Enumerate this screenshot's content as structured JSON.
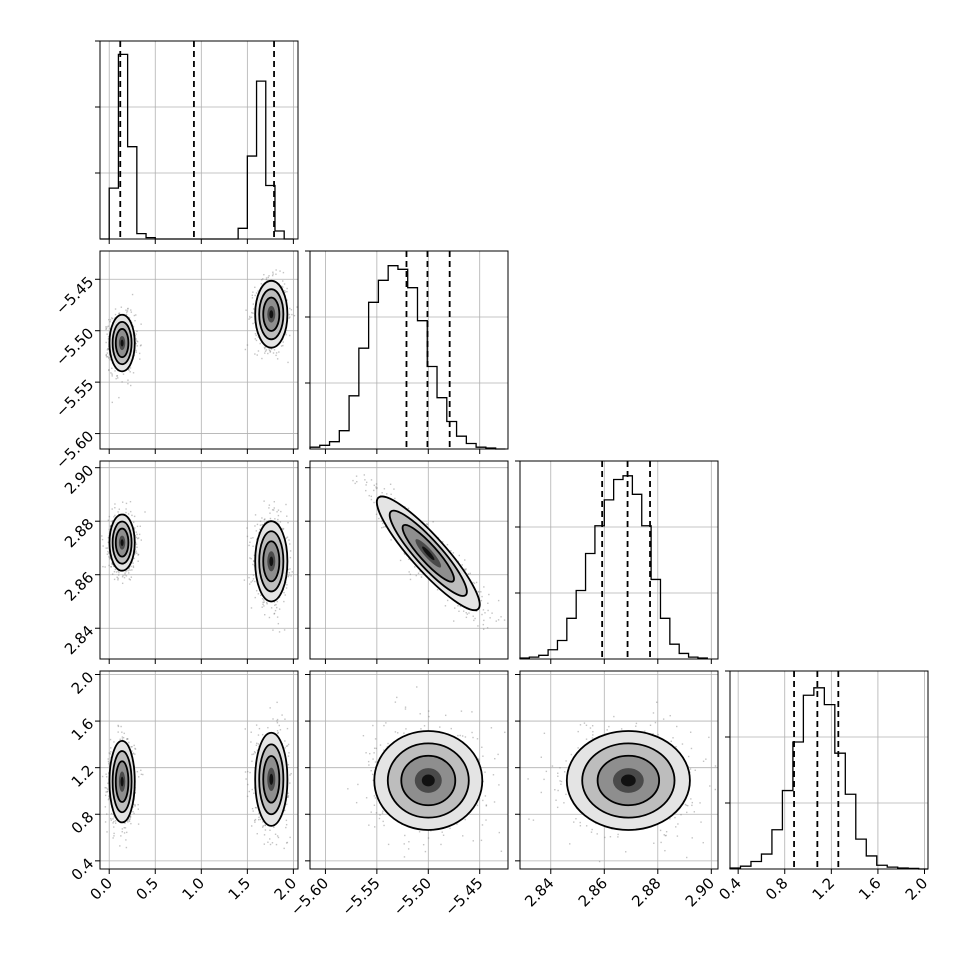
{
  "chart_data": {
    "type": "corner",
    "parameters": [
      {
        "range": [
          -0.1,
          2.05
        ],
        "ticks": [
          0.0,
          0.5,
          1.0,
          1.5,
          2.0
        ],
        "tick_labels": [
          "0.0",
          "0.5",
          "1.0",
          "1.5",
          "2.0"
        ]
      },
      {
        "range": [
          -5.615,
          -5.4225
        ],
        "ticks": [
          -5.6,
          -5.55,
          -5.5,
          -5.45
        ],
        "tick_labels": [
          "−5.60",
          "−5.55",
          "−5.50",
          "−5.45"
        ]
      },
      {
        "range": [
          2.8285,
          2.9025
        ],
        "ticks": [
          2.84,
          2.86,
          2.88,
          2.9
        ],
        "tick_labels": [
          "2.84",
          "2.86",
          "2.88",
          "2.90"
        ]
      },
      {
        "range": [
          0.33,
          2.03
        ],
        "ticks": [
          0.4,
          0.8,
          1.2,
          1.6,
          2.0
        ],
        "tick_labels": [
          "0.4",
          "0.8",
          "1.2",
          "1.6",
          "2.0"
        ]
      }
    ],
    "marginals": [
      {
        "parameter": 0,
        "quantiles": [
          0.12,
          0.92,
          1.79
        ],
        "bin_edges": [
          -0.1,
          0.0,
          0.1,
          0.2,
          0.3,
          0.4,
          0.5,
          1.4,
          1.5,
          1.6,
          1.7,
          1.8,
          1.9,
          2.0
        ],
        "heights": [
          0.0,
          0.38,
          1.38,
          0.69,
          0.04,
          0.01,
          0.0,
          0.08,
          0.62,
          1.18,
          0.4,
          0.06,
          0.0
        ],
        "ymax": 1.48
      },
      {
        "parameter": 1,
        "quantiles": [
          -5.5212,
          -5.5008,
          -5.4792
        ],
        "bin_edges": [
          -5.615,
          -5.6055,
          -5.596,
          -5.5865,
          -5.577,
          -5.5675,
          -5.558,
          -5.5485,
          -5.539,
          -5.5295,
          -5.52,
          -5.5105,
          -5.501,
          -5.4915,
          -5.482,
          -5.4725,
          -5.463,
          -5.4535,
          -5.444,
          -5.4345,
          -5.425
        ],
        "heights": [
          0.01,
          0.02,
          0.04,
          0.1,
          0.29,
          0.55,
          0.8,
          0.92,
          1.0,
          0.98,
          0.88,
          0.7,
          0.45,
          0.28,
          0.15,
          0.07,
          0.03,
          0.01,
          0.005,
          0.0
        ],
        "ymax": 1.08
      },
      {
        "parameter": 2,
        "quantiles": [
          2.8592,
          2.8687,
          2.8771
        ],
        "bin_edges": [
          2.8285,
          2.832,
          2.8355,
          2.839,
          2.8425,
          2.846,
          2.8495,
          2.853,
          2.8565,
          2.86,
          2.8635,
          2.867,
          2.8705,
          2.874,
          2.8775,
          2.881,
          2.8845,
          2.888,
          2.8915,
          2.895,
          2.8985
        ],
        "heights": [
          0.005,
          0.01,
          0.02,
          0.05,
          0.1,
          0.22,
          0.37,
          0.57,
          0.72,
          0.86,
          0.97,
          0.99,
          0.89,
          0.72,
          0.43,
          0.22,
          0.08,
          0.03,
          0.01,
          0.005
        ],
        "ymax": 1.07
      },
      {
        "parameter": 3,
        "quantiles": [
          0.88,
          1.08,
          1.26
        ],
        "bin_edges": [
          0.33,
          0.42,
          0.51,
          0.6,
          0.69,
          0.78,
          0.87,
          0.96,
          1.05,
          1.14,
          1.23,
          1.32,
          1.41,
          1.5,
          1.59,
          1.68,
          1.77,
          1.86,
          1.95,
          2.03
        ],
        "heights": [
          0.005,
          0.015,
          0.04,
          0.08,
          0.21,
          0.42,
          0.68,
          0.93,
          0.97,
          0.88,
          0.62,
          0.4,
          0.16,
          0.07,
          0.02,
          0.01,
          0.005,
          0.003,
          0.0
        ],
        "ymax": 1.06
      }
    ],
    "joints": [
      {
        "x": 0,
        "y": 1,
        "modes": [
          {
            "cx": 0.14,
            "cy": -5.512,
            "sx": 0.055,
            "sy": 0.011,
            "rho": 0.0,
            "weight": 1.0
          },
          {
            "cx": 1.76,
            "cy": -5.484,
            "sx": 0.07,
            "sy": 0.013,
            "rho": 0.0,
            "weight": 0.85
          }
        ]
      },
      {
        "x": 0,
        "y": 2,
        "modes": [
          {
            "cx": 0.14,
            "cy": 2.872,
            "sx": 0.055,
            "sy": 0.0042,
            "rho": 0.0,
            "weight": 1.0
          },
          {
            "cx": 1.76,
            "cy": 2.865,
            "sx": 0.07,
            "sy": 0.006,
            "rho": 0.0,
            "weight": 0.85
          }
        ]
      },
      {
        "x": 0,
        "y": 3,
        "modes": [
          {
            "cx": 0.14,
            "cy": 1.08,
            "sx": 0.055,
            "sy": 0.14,
            "rho": 0.0,
            "weight": 1.0
          },
          {
            "cx": 1.76,
            "cy": 1.1,
            "sx": 0.07,
            "sy": 0.16,
            "rho": 0.0,
            "weight": 0.85
          }
        ]
      },
      {
        "x": 1,
        "y": 2,
        "modes": [
          {
            "cx": -5.5,
            "cy": 2.868,
            "sx": 0.02,
            "sy": 0.0085,
            "rho": -0.9,
            "weight": 1.0
          }
        ]
      },
      {
        "x": 1,
        "y": 3,
        "modes": [
          {
            "cx": -5.5,
            "cy": 1.09,
            "sx": 0.021,
            "sy": 0.17,
            "rho": 0.0,
            "weight": 1.0
          }
        ]
      },
      {
        "x": 2,
        "y": 3,
        "modes": [
          {
            "cx": 2.869,
            "cy": 1.09,
            "sx": 0.0092,
            "sy": 0.17,
            "rho": 0.0,
            "weight": 1.0
          }
        ]
      }
    ],
    "contour_levels_sigma": [
      0.5,
      1.0,
      1.5,
      2.0
    ],
    "grid": true
  }
}
